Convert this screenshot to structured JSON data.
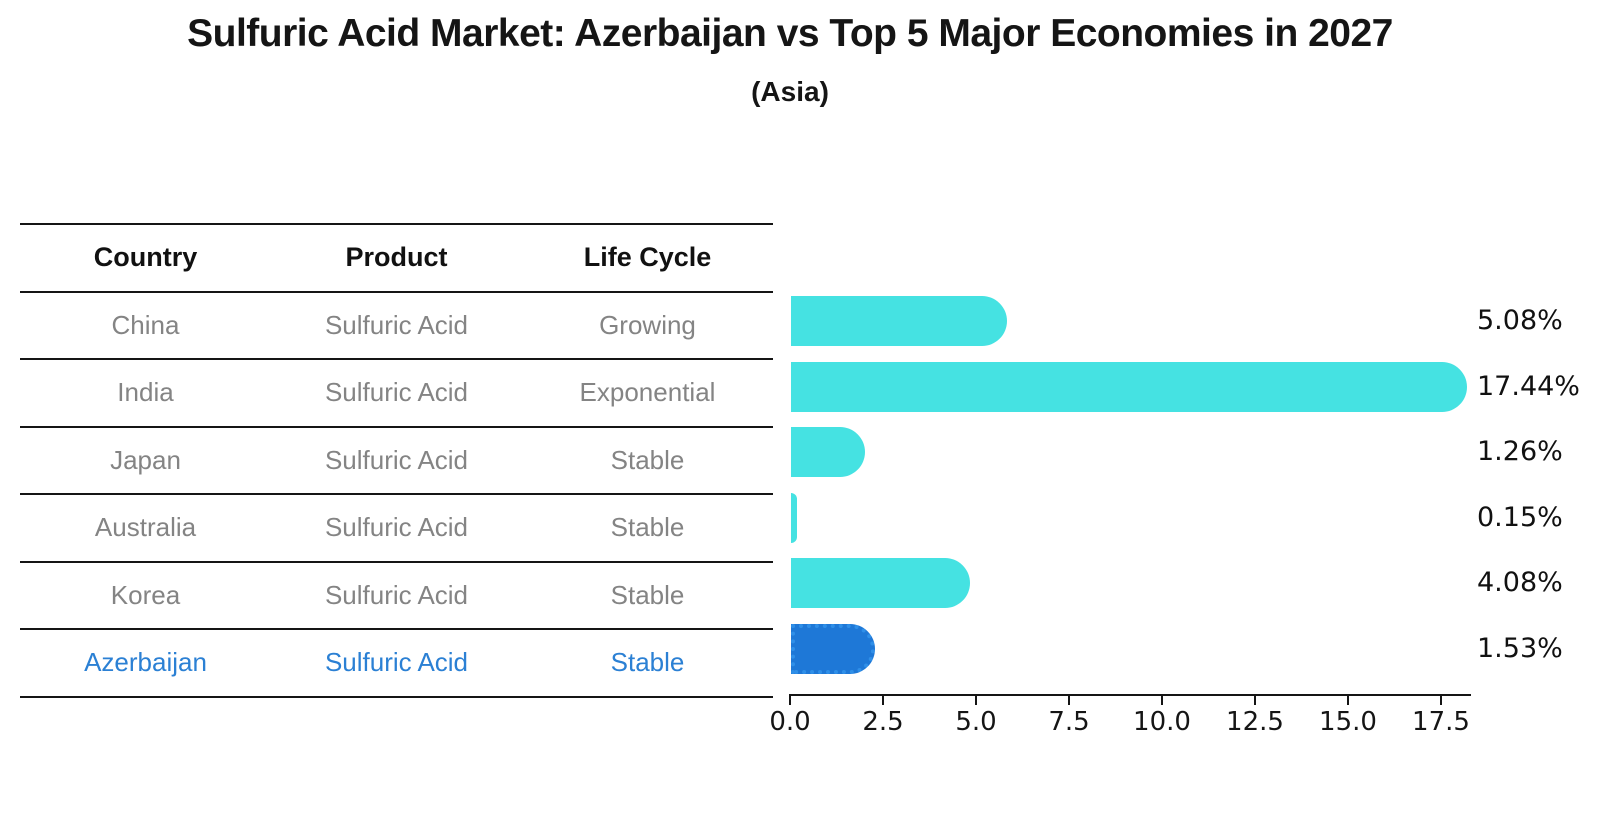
{
  "title": "Sulfuric Acid Market: Azerbaijan vs Top 5 Major Economies in 2027",
  "subtitle": "(Asia)",
  "table": {
    "headers": [
      "Country",
      "Product",
      "Life Cycle"
    ],
    "rows": [
      {
        "country": "China",
        "product": "Sulfuric Acid",
        "life_cycle": "Growing",
        "highlight": false
      },
      {
        "country": "India",
        "product": "Sulfuric Acid",
        "life_cycle": "Exponential",
        "highlight": false
      },
      {
        "country": "Japan",
        "product": "Sulfuric Acid",
        "life_cycle": "Stable",
        "highlight": false
      },
      {
        "country": "Australia",
        "product": "Sulfuric Acid",
        "life_cycle": "Stable",
        "highlight": false
      },
      {
        "country": "Korea",
        "product": "Sulfuric Acid",
        "life_cycle": "Stable",
        "highlight": false
      },
      {
        "country": "Azerbaijan",
        "product": "Sulfuric Acid",
        "life_cycle": "Stable",
        "highlight": true
      }
    ]
  },
  "chart_data": {
    "type": "bar",
    "orientation": "horizontal",
    "title": "Sulfuric Acid Market: Azerbaijan vs Top 5 Major Economies in 2027",
    "subtitle": "(Asia)",
    "categories": [
      "China",
      "India",
      "Japan",
      "Australia",
      "Korea",
      "Azerbaijan"
    ],
    "values": [
      5.08,
      17.44,
      1.26,
      0.15,
      4.08,
      1.53
    ],
    "value_labels": [
      "5.08%",
      "17.44%",
      "1.26%",
      "0.15%",
      "4.08%",
      "1.53%"
    ],
    "xlabel": "",
    "ylabel": "",
    "xlim": [
      0,
      18.3
    ],
    "xticks": [
      0.0,
      2.5,
      5.0,
      7.5,
      10.0,
      12.5,
      15.0,
      17.5
    ],
    "xtick_labels": [
      "0.0",
      "2.5",
      "5.0",
      "7.5",
      "10.0",
      "12.5",
      "15.0",
      "17.5"
    ],
    "grid": false,
    "legend": false,
    "bar_color": "#45e2e2",
    "highlight_category": "Azerbaijan",
    "highlight_bar_color": "#1e78d7",
    "highlight_border_color": "#2f8fe8",
    "highlight_text_color": "#2b80d4",
    "text_color": "#151515",
    "muted_text_color": "#848484"
  }
}
